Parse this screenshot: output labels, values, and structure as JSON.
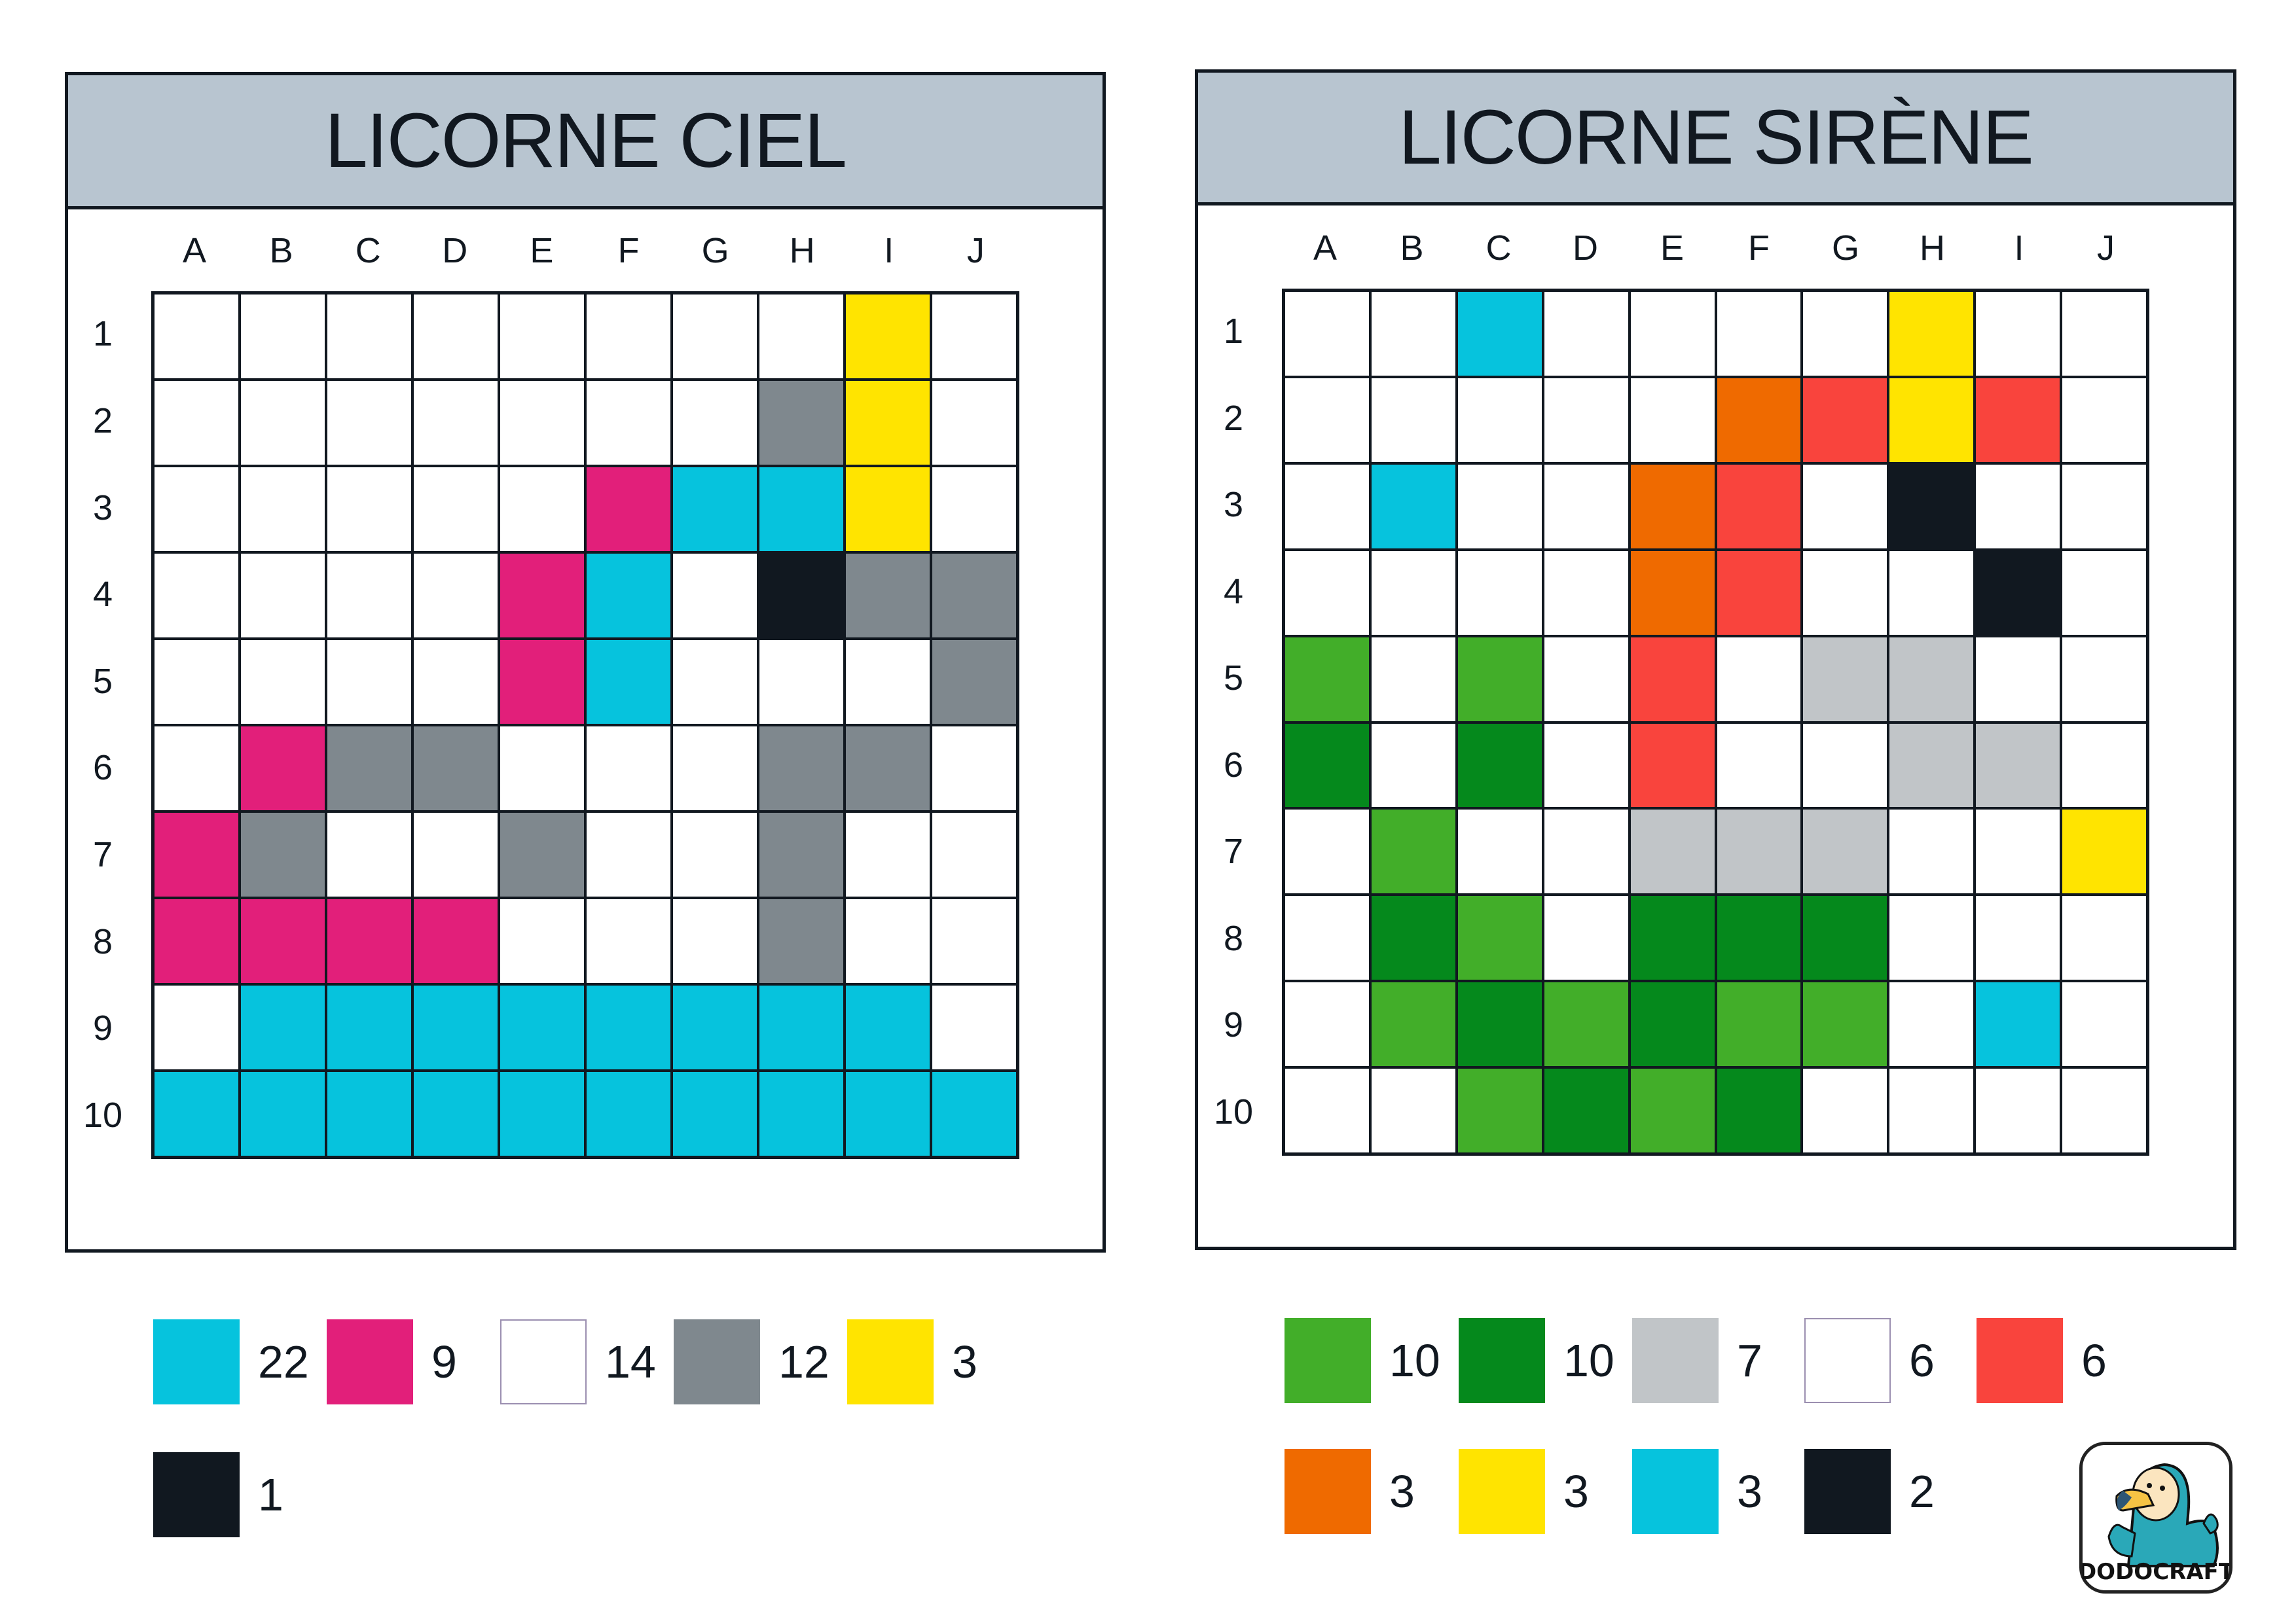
{
  "palette": {
    "C": "#06c3dd",
    "P": "#e21f7a",
    "W": "#ffffff",
    "G": "#7f888e",
    "Y": "#ffe400",
    "K": "#111820",
    "L": "#42ae29",
    "D": "#05891c",
    "S": "#c1c5c8",
    "R": "#f9443d",
    "O": "#ef6a00"
  },
  "columns": [
    "A",
    "B",
    "C",
    "D",
    "E",
    "F",
    "G",
    "H",
    "I",
    "J"
  ],
  "rows": [
    "1",
    "2",
    "3",
    "4",
    "5",
    "6",
    "7",
    "8",
    "9",
    "10"
  ],
  "puzzles": [
    {
      "title": "LICORNE CIEL",
      "grid": [
        "WWWWWWWWYW",
        "WWWWWWWGYW",
        "WWWWWPCCYW",
        "WWWWPCWKGG",
        "WWWWPCWWWG",
        "WPGGWWWGGW",
        "PGWWGWWGWW",
        "PPPPWWWGWW",
        "WCCCCCCCCW",
        "CCCCCCCCCC"
      ],
      "legend": [
        {
          "color": "C",
          "count": "22"
        },
        {
          "color": "P",
          "count": "9"
        },
        {
          "color": "W",
          "count": "14"
        },
        {
          "color": "G",
          "count": "12"
        },
        {
          "color": "Y",
          "count": "3"
        },
        {
          "color": "K",
          "count": "1"
        }
      ]
    },
    {
      "title": "LICORNE SIRÈNE",
      "grid": [
        "WWCWWWWYWW",
        "WWWWWORYRW",
        "WCWWORWKWW",
        "WWWWORWWKW",
        "LWLWRWSSWW",
        "DWDWRWWSSW",
        "WLWWSSSWWY",
        "WDLWDDDWWW",
        "WLDLDLLWCW",
        "WWLDLDWWWW"
      ],
      "legend": [
        {
          "color": "L",
          "count": "10"
        },
        {
          "color": "D",
          "count": "10"
        },
        {
          "color": "S",
          "count": "7"
        },
        {
          "color": "W",
          "count": "6"
        },
        {
          "color": "R",
          "count": "6"
        },
        {
          "color": "O",
          "count": "3"
        },
        {
          "color": "Y",
          "count": "3"
        },
        {
          "color": "C",
          "count": "3"
        },
        {
          "color": "K",
          "count": "2"
        }
      ]
    }
  ],
  "logo": {
    "text": "DODOCRAFT",
    "icon": "dodo-bird-mascot-icon"
  }
}
